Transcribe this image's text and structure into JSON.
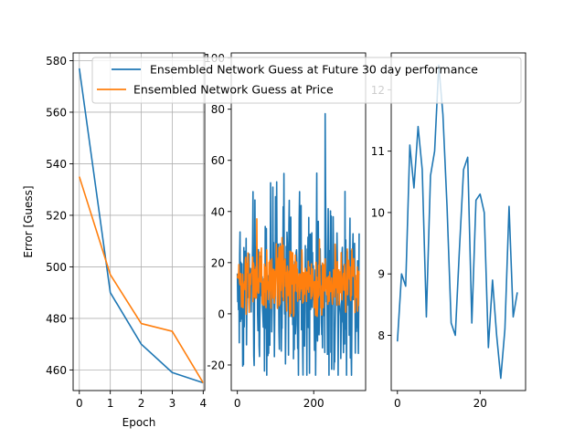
{
  "chart_data": [
    {
      "type": "line",
      "xlabel": "Epoch",
      "ylabel": "Error [Guess]",
      "xlim": [
        -0.2,
        4.05
      ],
      "ylim": [
        452,
        583
      ],
      "xticks": [
        0,
        1,
        2,
        3,
        4
      ],
      "yticks": [
        460,
        480,
        500,
        520,
        540,
        560,
        580
      ],
      "grid": true,
      "series": [
        {
          "name": "Ensembled Network Guess at Future 30 day performance",
          "color": "#1f77b4",
          "x": [
            0,
            1,
            2,
            3,
            4
          ],
          "y": [
            577,
            490,
            470,
            459,
            455
          ]
        },
        {
          "name": "Ensembled Network Guess at Price",
          "color": "#ff7f0e",
          "x": [
            0,
            1,
            2,
            3,
            4
          ],
          "y": [
            535,
            497,
            478,
            475,
            455
          ]
        }
      ]
    },
    {
      "type": "line",
      "xlim": [
        -16,
        336
      ],
      "ylim": [
        -30,
        102
      ],
      "xticks": [
        0,
        200
      ],
      "yticks": [
        -20,
        0,
        20,
        40,
        60,
        80,
        100
      ],
      "grid": false,
      "series": [
        {
          "name": "blue",
          "color": "#1f77b4",
          "noise": true,
          "n": 320,
          "center": 10,
          "spread": 24,
          "min": -24,
          "max": 102
        },
        {
          "name": "orange",
          "color": "#ff7f0e",
          "noise": true,
          "n": 320,
          "center": 12,
          "spread": 9,
          "min": -1,
          "max": 49
        }
      ]
    },
    {
      "type": "line",
      "xlim": [
        -1.5,
        31
      ],
      "ylim": [
        7.1,
        12.6
      ],
      "xticks": [
        0,
        20
      ],
      "yticks": [
        8,
        9,
        10,
        11,
        12
      ],
      "grid": false,
      "series": [
        {
          "name": "blue",
          "color": "#1f77b4",
          "x": [
            0,
            1,
            2,
            3,
            4,
            5,
            6,
            7,
            8,
            9,
            10,
            11,
            12,
            13,
            14,
            15,
            16,
            17,
            18,
            19,
            20,
            21,
            22,
            23,
            24,
            25,
            26,
            27,
            28,
            29
          ],
          "y": [
            7.9,
            9.0,
            8.8,
            11.1,
            10.4,
            11.4,
            10.7,
            8.3,
            10.6,
            11.0,
            12.4,
            11.6,
            10.1,
            8.2,
            8.0,
            9.4,
            10.7,
            10.9,
            8.2,
            10.2,
            10.3,
            10.0,
            7.8,
            8.9,
            8.0,
            7.3,
            8.1,
            10.1,
            8.3,
            8.7
          ]
        }
      ]
    }
  ],
  "legend": {
    "placement": "top-center",
    "entries": [
      {
        "label": "Ensembled Network Guess at Future 30 day performance",
        "color": "#1f77b4"
      },
      {
        "label": "Ensembled Network Guess at Price",
        "color": "#ff7f0e"
      }
    ]
  }
}
